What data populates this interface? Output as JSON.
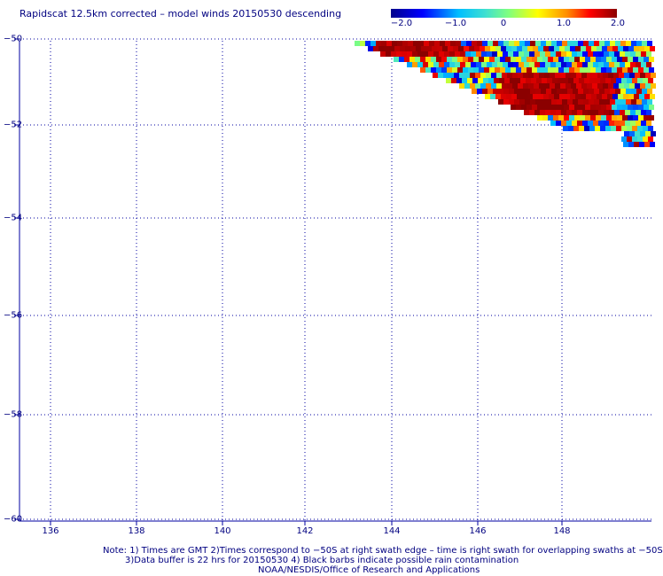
{
  "title": "Rapidscat 12.5km corrected – model winds 20150530 descending",
  "colorbar": {
    "labels": [
      "−2.0",
      "−1.0",
      "0",
      "1.0",
      "2.0"
    ],
    "values": [
      -2.0,
      -1.0,
      0,
      1.0,
      2.0
    ],
    "colors": [
      "#00008b",
      "#0000ff",
      "#00bfff",
      "#40e0d0",
      "#7fff7f",
      "#ffff00",
      "#ff8c00",
      "#ff0000",
      "#8b0000"
    ]
  },
  "map": {
    "lon_labels": [
      "136",
      "138",
      "140",
      "142",
      "144",
      "146",
      "148"
    ],
    "lat_labels": [
      "−50",
      "−52",
      "−54",
      "−56",
      "−58",
      "−60"
    ],
    "lon_range": [
      135.2,
      149.9
    ],
    "lat_range": [
      -60,
      -50
    ],
    "swath_color_scale": [
      -2.0,
      2.0
    ]
  },
  "notes": {
    "line1": "Note: 1) Times are GMT 2)Times correspond to −50S at right swath edge – time is right swath for overlapping swaths at −50S",
    "line2": "3)Data buffer is 22 hrs for 20150530 4) Black barbs indicate possible rain contamination",
    "line3": "NOAA/NESDIS/Office of Research and Applications"
  }
}
